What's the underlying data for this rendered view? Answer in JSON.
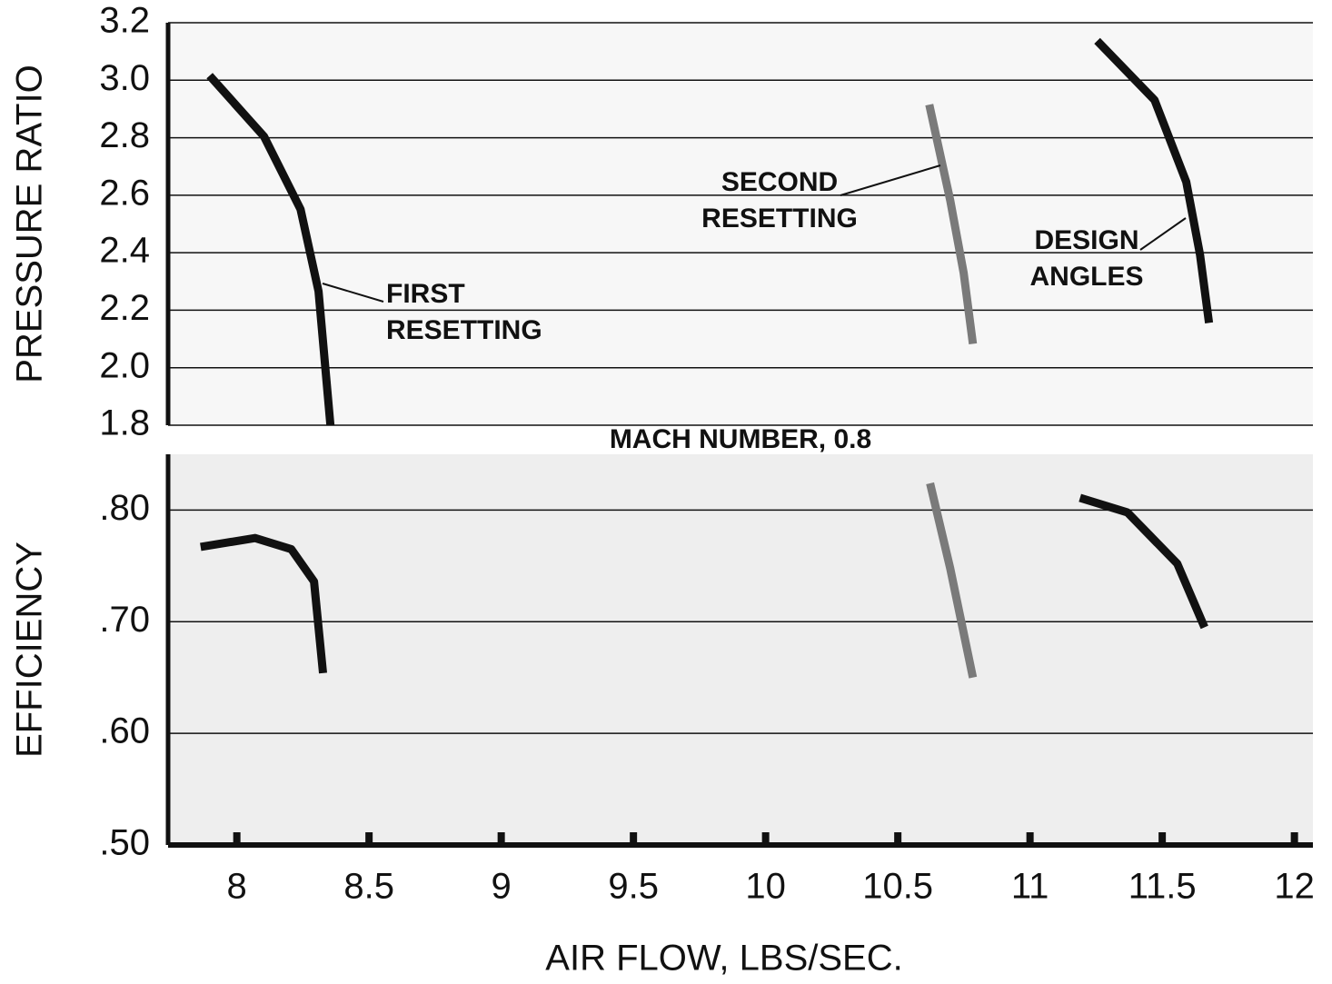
{
  "chart_data": [
    {
      "type": "line",
      "ylabel": "PRESSURE RATIO",
      "xlim": [
        7.74,
        12.07
      ],
      "ylim": [
        1.8,
        3.2
      ],
      "yticks": [
        {
          "value": 1.8,
          "label": "1.8"
        },
        {
          "value": 2.0,
          "label": "2.0"
        },
        2.2,
        2.4,
        2.6,
        2.8,
        {
          "value": 3.0,
          "label": "3.0"
        },
        3.2
      ],
      "grid": true,
      "series": [
        {
          "label_lines": [
            "FIRST",
            "RESETTING"
          ],
          "color": "#111111",
          "x": [
            7.897,
            8.103,
            8.241,
            8.309,
            8.354
          ],
          "values": [
            3.016,
            2.804,
            2.551,
            2.266,
            1.8
          ]
        },
        {
          "label_lines": [
            "SECOND",
            "RESETTING"
          ],
          "color": "#7a7a7a",
          "x": [
            10.619,
            10.698,
            10.749,
            10.784
          ],
          "values": [
            2.915,
            2.583,
            2.33,
            2.083
          ]
        },
        {
          "label_lines": [
            "DESIGN",
            "ANGLES"
          ],
          "color": "#111111",
          "x": [
            11.254,
            11.471,
            11.591,
            11.643,
            11.677
          ],
          "values": [
            3.137,
            2.931,
            2.646,
            2.393,
            2.156
          ]
        }
      ]
    },
    {
      "type": "line",
      "ylabel": "EFFICIENCY",
      "annotation": "MACH NUMBER, 0.8",
      "xlabel": "AIR FLOW, LBS/SEC.",
      "xlim": [
        7.74,
        12.07
      ],
      "ylim": [
        0.5,
        0.85
      ],
      "xticks": [
        8,
        8.5,
        9,
        9.5,
        10,
        10.5,
        11,
        11.5,
        12
      ],
      "yticks": [
        {
          "value": 0.5,
          "label": ".50"
        },
        {
          "value": 0.6,
          "label": ".60"
        },
        {
          "value": 0.7,
          "label": ".70"
        },
        {
          "value": 0.8,
          "label": ".80"
        }
      ],
      "grid": true,
      "series": [
        {
          "color": "#111111",
          "x": [
            7.863,
            8.069,
            8.206,
            8.292,
            8.326
          ],
          "values": [
            0.767,
            0.775,
            0.765,
            0.736,
            0.654
          ]
        },
        {
          "color": "#7a7a7a",
          "x": [
            10.622,
            10.698,
            10.784
          ],
          "values": [
            0.824,
            0.748,
            0.65
          ]
        },
        {
          "color": "#111111",
          "x": [
            11.189,
            11.368,
            11.557,
            11.66
          ],
          "values": [
            0.811,
            0.798,
            0.752,
            0.695
          ]
        }
      ]
    }
  ]
}
